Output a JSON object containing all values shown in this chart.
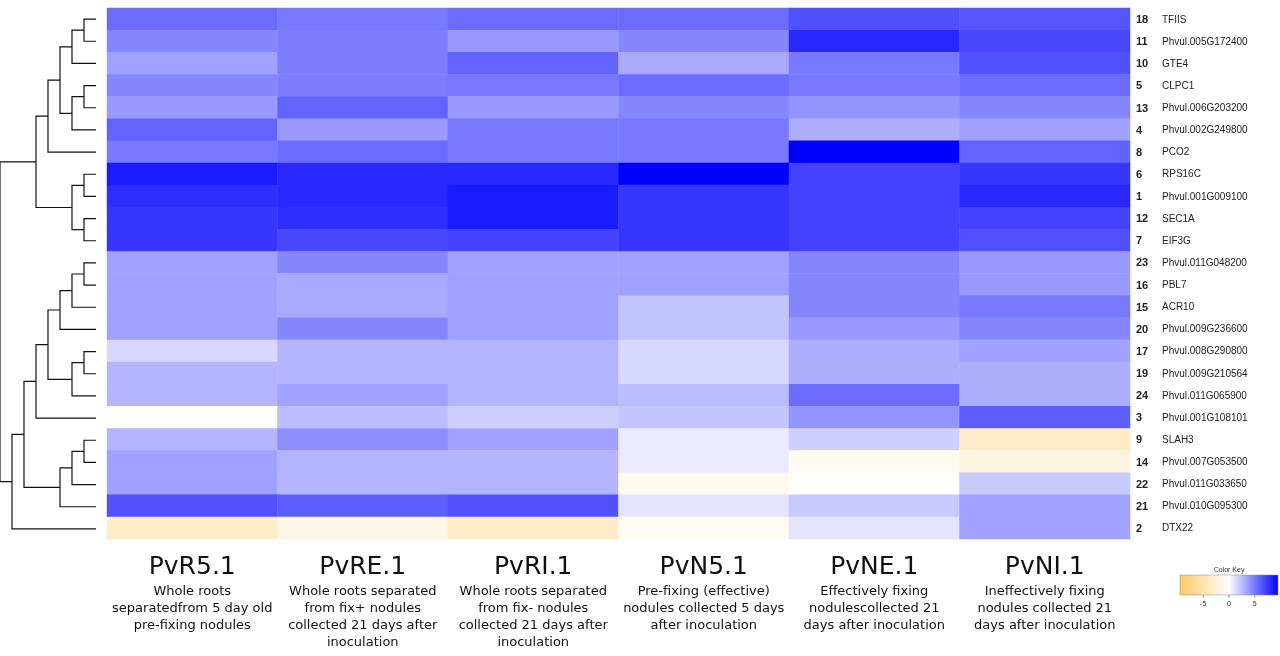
{
  "chart_data": {
    "type": "heatmap",
    "categories": [
      "PvR5.1",
      "PvRE.1",
      "PvRI.1",
      "PvN5.1",
      "PvNE.1",
      "PvNI.1"
    ],
    "y_categories": [
      "18",
      "11",
      "10",
      "5",
      "13",
      "4",
      "8",
      "6",
      "1",
      "12",
      "7",
      "23",
      "16",
      "15",
      "20",
      "17",
      "19",
      "24",
      "3",
      "9",
      "14",
      "22",
      "21",
      "2"
    ],
    "y2_categories": [
      "TFIIS",
      "Phvul.005G172400",
      "GTE4",
      "CLPC1",
      "Phvul.006G203200",
      "Phvul.002G249800",
      "PCO2",
      "RPS16C",
      "Phvul.001G009100",
      "SEC1A",
      "EIF3G",
      "Phvul.011G048200",
      "PBL7",
      "ACR10",
      "Phvul.009G236600",
      "Phvul.008G290800",
      "Phvul.009G210564",
      "Phvul.011G065900",
      "Phvul.001G108101",
      "SLAH3",
      "Phvul.007G053500",
      "Phvul.011G033650",
      "Phvul.010G095300",
      "DTX22"
    ],
    "cells": [
      [
        5.5,
        5,
        5.5,
        5.5,
        6.5,
        6.3
      ],
      [
        4.5,
        4.8,
        3.8,
        4.5,
        8,
        6.8
      ],
      [
        3.5,
        4.8,
        5.8,
        3.2,
        5,
        6.5
      ],
      [
        4.5,
        4.8,
        5,
        5.5,
        5,
        5.5
      ],
      [
        3.8,
        5.8,
        3.8,
        4.5,
        4,
        4.5
      ],
      [
        5.8,
        3.8,
        5,
        5,
        3,
        3.5
      ],
      [
        5,
        5.5,
        5,
        5,
        9.5,
        5.8
      ],
      [
        8.5,
        8,
        8,
        9.5,
        7,
        7.5
      ],
      [
        7.8,
        8,
        8.5,
        7.5,
        7,
        8
      ],
      [
        7.5,
        7.8,
        8.5,
        7.5,
        7,
        7
      ],
      [
        7.5,
        6.8,
        7,
        7.5,
        7,
        6.5
      ],
      [
        3.5,
        4.5,
        3.5,
        3.5,
        4.5,
        3.8
      ],
      [
        3.5,
        3.2,
        3.5,
        3.5,
        4.5,
        3.8
      ],
      [
        3.5,
        3.2,
        3.5,
        2.2,
        4.5,
        5
      ],
      [
        3.5,
        4.5,
        3.5,
        2.2,
        3.8,
        4.5
      ],
      [
        1.5,
        2.8,
        2.8,
        1.5,
        3,
        3.5
      ],
      [
        2.8,
        2.8,
        2.8,
        1.5,
        3,
        3
      ],
      [
        2.8,
        3.5,
        2.8,
        2.5,
        5.5,
        3
      ],
      [
        0,
        2.5,
        1.8,
        2.2,
        4,
        6
      ],
      [
        2.8,
        4.2,
        3.5,
        0.8,
        1.8,
        -3.5
      ],
      [
        3.5,
        2.8,
        2.8,
        0.8,
        -1,
        -2
      ],
      [
        3.5,
        2.8,
        2.8,
        -1.2,
        0,
        2
      ],
      [
        6.5,
        6,
        6.5,
        1,
        2,
        3.5
      ],
      [
        -3.5,
        -1.5,
        -3.5,
        -0.8,
        1,
        3.5
      ]
    ],
    "clim": [
      -9.5,
      9.5
    ],
    "cticks": [
      -5,
      0,
      5
    ],
    "clabel": "Color Key",
    "annotations": [
      "Whole roots separatedfrom 5 day old pre-fixing nodules",
      "Whole roots separated from fix+ nodules collected 21 days after inoculation",
      "Whole roots separated from fix- nodules collected 21 days after inoculation",
      "Pre-fixing (effective) nodules collected 5 days after inoculation",
      "Effectively fixing nodulescollected 21 days after inoculation",
      "Ineffectively fixing nodules collected 21 days after inoculation"
    ]
  }
}
